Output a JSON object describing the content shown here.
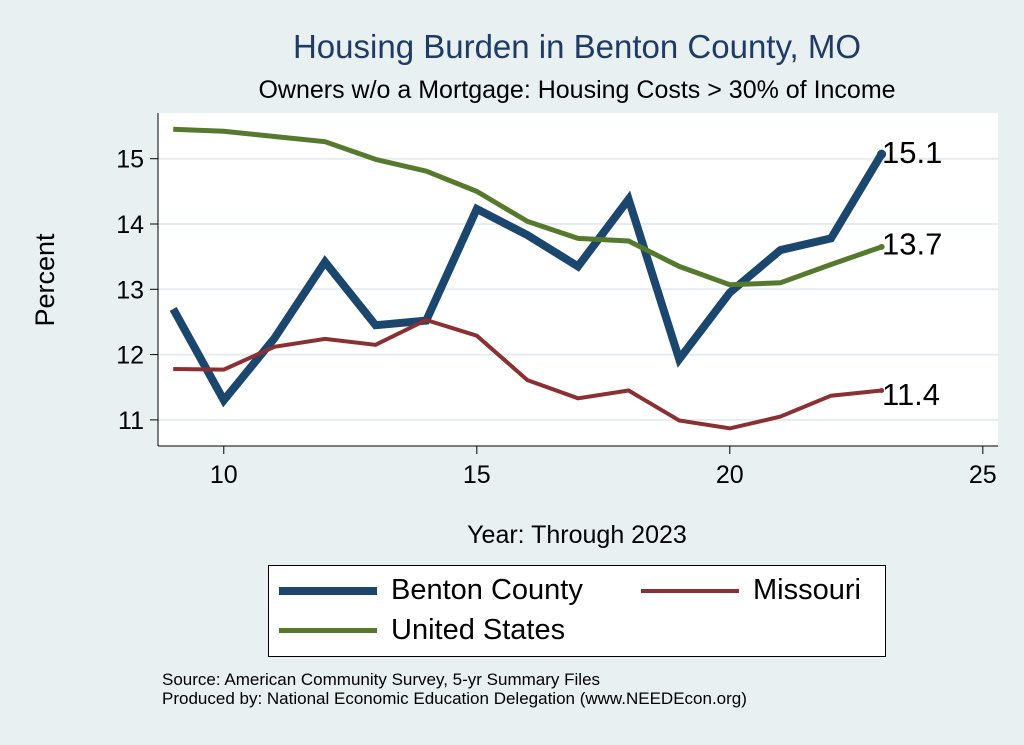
{
  "chart_data": {
    "type": "line",
    "title": "Housing Burden in Benton County, MO",
    "subtitle": "Owners w/o a Mortgage: Housing Costs > 30% of Income",
    "xlabel": "Year: Through 2023",
    "ylabel": "Percent",
    "xlim": [
      8.7,
      25.3
    ],
    "ylim": [
      10.6,
      15.7
    ],
    "xticks": [
      10,
      15,
      20,
      25
    ],
    "yticks": [
      11,
      12,
      13,
      14,
      15
    ],
    "grid": true,
    "x": [
      9,
      10,
      11,
      12,
      13,
      14,
      15,
      16,
      17,
      18,
      19,
      20,
      21,
      22,
      23
    ],
    "series": [
      {
        "name": "Benton County",
        "color": "#1b466e",
        "width": 8,
        "values": [
          12.7,
          11.3,
          12.25,
          13.42,
          12.45,
          12.52,
          14.23,
          13.83,
          13.35,
          14.38,
          11.93,
          12.95,
          13.6,
          13.78,
          15.07
        ]
      },
      {
        "name": "Missouri",
        "color": "#8a3033",
        "width": 4,
        "values": [
          11.78,
          11.77,
          12.12,
          12.24,
          12.15,
          12.53,
          12.29,
          11.61,
          11.33,
          11.45,
          10.99,
          10.87,
          11.05,
          11.37,
          11.45
        ]
      },
      {
        "name": "United States",
        "color": "#557a2d",
        "width": 5,
        "values": [
          15.45,
          15.42,
          15.34,
          15.26,
          14.99,
          14.81,
          14.5,
          14.04,
          13.78,
          13.74,
          13.35,
          13.07,
          13.1,
          13.38,
          13.65
        ]
      }
    ],
    "end_labels": [
      "15.1",
      "13.7",
      "11.4"
    ],
    "legend": {
      "position": "bottom",
      "entries": [
        "Benton County",
        "Missouri",
        "United States"
      ]
    }
  },
  "footer": {
    "source": "Source: American Community Survey, 5-yr Summary Files",
    "produced": "Produced by: National Economic Education Delegation (www.NEEDEcon.org)"
  }
}
